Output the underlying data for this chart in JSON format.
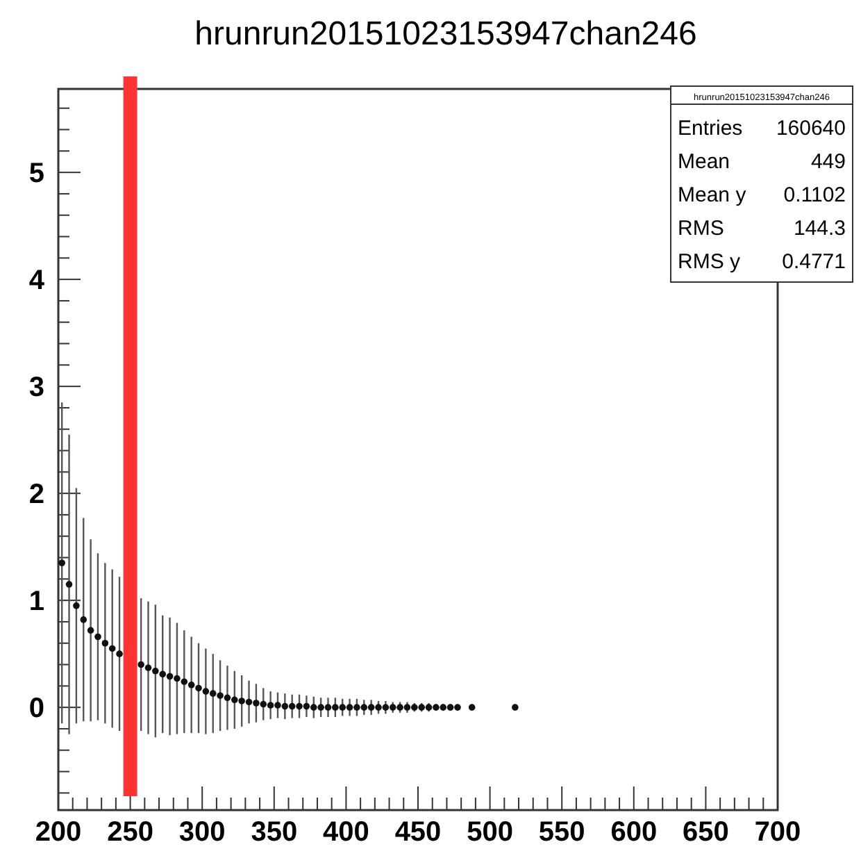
{
  "chart_data": {
    "type": "scatter",
    "title": "hrunrun20151023153947chan246",
    "annotations": [
      "hrunrun20151023153947chan246",
      "Entries 160640",
      "Mean 449",
      "Mean y 0.1102",
      "RMS 144.3",
      "RMS y 0.4771"
    ],
    "series": [
      {
        "color": "#111111",
        "marker": "circle",
        "x": [
          202.5,
          207.5,
          212.5,
          217.5,
          222.5,
          227.5,
          232.5,
          237.5,
          242.5,
          257.5,
          262.5,
          267.5,
          272.5,
          277.5,
          282.5,
          287.5,
          292.5,
          297.5,
          302.5,
          307.5,
          312.5,
          317.5,
          322.5,
          327.5,
          332.5,
          337.5,
          342.5,
          347.5,
          352.5,
          357.5,
          362.5,
          367.5,
          372.5,
          377.5,
          382.5,
          387.5,
          392.5,
          397.5,
          402.5,
          407.5,
          412.5,
          417.5,
          422.5,
          427.5,
          432.5,
          437.5,
          442.5,
          447.5,
          452.5,
          457.5,
          462.5,
          467.5,
          472.5,
          477.5,
          487.5,
          517.5
        ],
        "values": [
          1.35,
          1.15,
          0.95,
          0.82,
          0.72,
          0.66,
          0.6,
          0.55,
          0.5,
          0.4,
          0.37,
          0.34,
          0.31,
          0.29,
          0.27,
          0.24,
          0.21,
          0.18,
          0.15,
          0.13,
          0.11,
          0.09,
          0.07,
          0.06,
          0.05,
          0.04,
          0.03,
          0.02,
          0.02,
          0.01,
          0.01,
          0.01,
          0.01,
          0,
          0,
          0,
          0,
          0,
          0,
          0,
          0,
          0,
          0,
          0,
          0,
          0,
          0,
          0,
          0,
          0,
          0,
          0,
          0,
          0,
          0,
          0
        ],
        "errors": [
          1.5,
          1.4,
          1.1,
          0.95,
          0.85,
          0.78,
          0.75,
          0.74,
          0.72,
          0.62,
          0.62,
          0.62,
          0.55,
          0.55,
          0.52,
          0.48,
          0.45,
          0.42,
          0.4,
          0.37,
          0.33,
          0.3,
          0.27,
          0.24,
          0.2,
          0.18,
          0.15,
          0.13,
          0.12,
          0.12,
          0.11,
          0.11,
          0.1,
          0.1,
          0.09,
          0.09,
          0.09,
          0.08,
          0.08,
          0.08,
          0.07,
          0.07,
          0.06,
          0.06,
          0.05,
          0.05,
          0.05,
          0.04,
          0.04,
          0.04,
          0.03,
          0.03,
          0.03,
          0.02,
          0.02,
          0.02
        ]
      }
    ],
    "xlim": [
      200,
      700
    ],
    "xticks": [
      200,
      {
        "value": 210,
        "label": null
      },
      {
        "value": 220,
        "label": null
      },
      {
        "value": 230,
        "label": null
      },
      {
        "value": 240,
        "label": null
      },
      250,
      {
        "value": 260,
        "label": null
      },
      {
        "value": 270,
        "label": null
      },
      {
        "value": 280,
        "label": null
      },
      {
        "value": 290,
        "label": null
      },
      300,
      {
        "value": 310,
        "label": null
      },
      {
        "value": 320,
        "label": null
      },
      {
        "value": 330,
        "label": null
      },
      {
        "value": 340,
        "label": null
      },
      350,
      {
        "value": 360,
        "label": null
      },
      {
        "value": 370,
        "label": null
      },
      {
        "value": 380,
        "label": null
      },
      {
        "value": 390,
        "label": null
      },
      400,
      {
        "value": 410,
        "label": null
      },
      {
        "value": 420,
        "label": null
      },
      {
        "value": 430,
        "label": null
      },
      {
        "value": 440,
        "label": null
      },
      450,
      {
        "value": 460,
        "label": null
      },
      {
        "value": 470,
        "label": null
      },
      {
        "value": 480,
        "label": null
      },
      {
        "value": 490,
        "label": null
      },
      500,
      {
        "value": 510,
        "label": null
      },
      {
        "value": 520,
        "label": null
      },
      {
        "value": 530,
        "label": null
      },
      {
        "value": 540,
        "label": null
      },
      550,
      {
        "value": 560,
        "label": null
      },
      {
        "value": 570,
        "label": null
      },
      {
        "value": 580,
        "label": null
      },
      {
        "value": 590,
        "label": null
      },
      600,
      {
        "value": 610,
        "label": null
      },
      {
        "value": 620,
        "label": null
      },
      {
        "value": 630,
        "label": null
      },
      {
        "value": 640,
        "label": null
      },
      650,
      {
        "value": 660,
        "label": null
      },
      {
        "value": 670,
        "label": null
      },
      {
        "value": 680,
        "label": null
      },
      {
        "value": 690,
        "label": null
      },
      700
    ],
    "ylim": [
      -0.96,
      5.78
    ],
    "yticks": [
      {
        "value": -0.8,
        "label": null
      },
      {
        "value": -0.6,
        "label": null
      },
      {
        "value": -0.4,
        "label": null
      },
      {
        "value": -0.2,
        "label": null
      },
      0,
      {
        "value": 0.2,
        "label": null
      },
      {
        "value": 0.4,
        "label": null
      },
      {
        "value": 0.6,
        "label": null
      },
      {
        "value": 0.8,
        "label": null
      },
      1,
      {
        "value": 1.2,
        "label": null
      },
      {
        "value": 1.4,
        "label": null
      },
      {
        "value": 1.6,
        "label": null
      },
      {
        "value": 1.8,
        "label": null
      },
      2,
      {
        "value": 2.2,
        "label": null
      },
      {
        "value": 2.4,
        "label": null
      },
      {
        "value": 2.6,
        "label": null
      },
      {
        "value": 2.8,
        "label": null
      },
      3,
      {
        "value": 3.2,
        "label": null
      },
      {
        "value": 3.4,
        "label": null
      },
      {
        "value": 3.6,
        "label": null
      },
      {
        "value": 3.8,
        "label": null
      },
      4,
      {
        "value": 4.2,
        "label": null
      },
      {
        "value": 4.4,
        "label": null
      },
      {
        "value": 4.6,
        "label": null
      },
      {
        "value": 4.8,
        "label": null
      },
      5,
      {
        "value": 5.2,
        "label": null
      },
      {
        "value": 5.4,
        "label": null
      },
      {
        "value": 5.6,
        "label": null
      }
    ],
    "ref_lines": [
      {
        "axis": "x",
        "value": 250,
        "color": "#ff3333"
      }
    ],
    "grid": false
  }
}
